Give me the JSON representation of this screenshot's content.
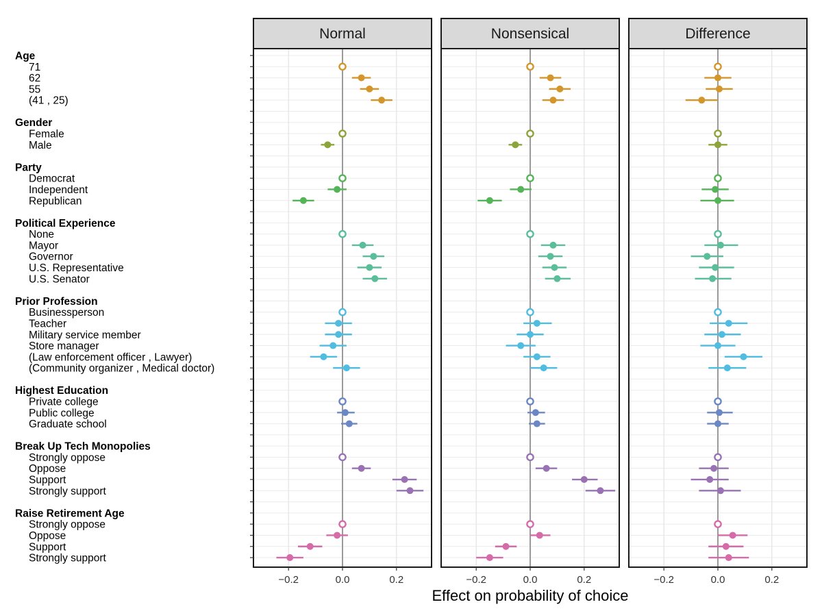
{
  "chart_data": {
    "type": "scatter",
    "subtype": "faceted coefficient plot with confidence intervals",
    "xlabel": "Effect on probability of choice",
    "xlim": [
      -0.33,
      0.33
    ],
    "xticks": [
      -0.2,
      0.0,
      0.2
    ],
    "xtick_labels": [
      "−0.2",
      "0.0",
      "0.2"
    ],
    "grid": true,
    "panels": [
      {
        "title": "Normal"
      },
      {
        "title": "Nonsensical"
      },
      {
        "title": "Difference"
      }
    ],
    "groups": [
      {
        "name": "Age",
        "color": "#D4962A",
        "levels": [
          {
            "label": "71",
            "ref": true,
            "est": [
              0,
              0,
              0
            ],
            "lo": [
              0,
              0,
              0
            ],
            "hi": [
              0,
              0,
              0
            ]
          },
          {
            "label": "62",
            "est": [
              0.07,
              0.075,
              0.0
            ],
            "lo": [
              0.035,
              0.035,
              -0.05
            ],
            "hi": [
              0.105,
              0.115,
              0.05
            ]
          },
          {
            "label": "55",
            "est": [
              0.1,
              0.11,
              0.005
            ],
            "lo": [
              0.065,
              0.07,
              -0.045
            ],
            "hi": [
              0.135,
              0.15,
              0.055
            ]
          },
          {
            "label": "(41 , 25)",
            "est": [
              0.145,
              0.085,
              -0.06
            ],
            "lo": [
              0.105,
              0.045,
              -0.12
            ],
            "hi": [
              0.185,
              0.125,
              0.0
            ]
          }
        ]
      },
      {
        "name": "Gender",
        "color": "#8DA43A",
        "levels": [
          {
            "label": "Female",
            "ref": true,
            "est": [
              0,
              0,
              0
            ],
            "lo": [
              0,
              0,
              0
            ],
            "hi": [
              0,
              0,
              0
            ]
          },
          {
            "label": "Male",
            "est": [
              -0.055,
              -0.055,
              0.0
            ],
            "lo": [
              -0.08,
              -0.08,
              -0.035
            ],
            "hi": [
              -0.03,
              -0.03,
              0.035
            ]
          }
        ]
      },
      {
        "name": "Party",
        "color": "#56B458",
        "levels": [
          {
            "label": "Democrat",
            "ref": true,
            "est": [
              0,
              0,
              0
            ],
            "lo": [
              0,
              0,
              0
            ],
            "hi": [
              0,
              0,
              0
            ]
          },
          {
            "label": "Independent",
            "est": [
              -0.02,
              -0.035,
              -0.01
            ],
            "lo": [
              -0.055,
              -0.075,
              -0.06
            ],
            "hi": [
              0.015,
              0.005,
              0.04
            ]
          },
          {
            "label": "Republican",
            "est": [
              -0.145,
              -0.15,
              0.0
            ],
            "lo": [
              -0.185,
              -0.195,
              -0.065
            ],
            "hi": [
              -0.105,
              -0.105,
              0.06
            ]
          }
        ]
      },
      {
        "name": "Political Experience",
        "color": "#5BBE9A",
        "levels": [
          {
            "label": "None",
            "ref": true,
            "est": [
              0,
              0,
              0
            ],
            "lo": [
              0,
              0,
              0
            ],
            "hi": [
              0,
              0,
              0
            ]
          },
          {
            "label": "Mayor",
            "est": [
              0.075,
              0.085,
              0.01
            ],
            "lo": [
              0.035,
              0.04,
              -0.05
            ],
            "hi": [
              0.115,
              0.13,
              0.075
            ]
          },
          {
            "label": "Governor",
            "est": [
              0.115,
              0.075,
              -0.04
            ],
            "lo": [
              0.075,
              0.03,
              -0.1
            ],
            "hi": [
              0.155,
              0.12,
              0.02
            ]
          },
          {
            "label": "U.S. Representative",
            "est": [
              0.1,
              0.09,
              -0.01
            ],
            "lo": [
              0.055,
              0.045,
              -0.07
            ],
            "hi": [
              0.145,
              0.135,
              0.06
            ]
          },
          {
            "label": "U.S. Senator",
            "est": [
              0.12,
              0.1,
              -0.02
            ],
            "lo": [
              0.075,
              0.055,
              -0.085
            ],
            "hi": [
              0.165,
              0.15,
              0.05
            ]
          }
        ]
      },
      {
        "name": "Prior Profession",
        "color": "#4FBCE0",
        "levels": [
          {
            "label": "Businessperson",
            "ref": true,
            "est": [
              0,
              0,
              0
            ],
            "lo": [
              0,
              0,
              0
            ],
            "hi": [
              0,
              0,
              0
            ]
          },
          {
            "label": "Teacher",
            "est": [
              -0.015,
              0.025,
              0.04
            ],
            "lo": [
              -0.065,
              -0.025,
              -0.03
            ],
            "hi": [
              0.035,
              0.08,
              0.11
            ]
          },
          {
            "label": "Military service member",
            "est": [
              -0.015,
              0.0,
              0.015
            ],
            "lo": [
              -0.065,
              -0.05,
              -0.05
            ],
            "hi": [
              0.035,
              0.05,
              0.085
            ]
          },
          {
            "label": "Store manager",
            "est": [
              -0.035,
              -0.035,
              0.0
            ],
            "lo": [
              -0.085,
              -0.09,
              -0.065
            ],
            "hi": [
              0.015,
              0.02,
              0.065
            ]
          },
          {
            "label": "(Law enforcement officer , Lawyer)",
            "est": [
              -0.07,
              0.025,
              0.095
            ],
            "lo": [
              -0.12,
              -0.025,
              0.025
            ],
            "hi": [
              -0.02,
              0.075,
              0.165
            ]
          },
          {
            "label": "(Community organizer , Medical doctor)",
            "est": [
              0.015,
              0.05,
              0.035
            ],
            "lo": [
              -0.035,
              0.0,
              -0.035
            ],
            "hi": [
              0.065,
              0.1,
              0.105
            ]
          }
        ]
      },
      {
        "name": "Highest Education",
        "color": "#6B88C4",
        "levels": [
          {
            "label": "Private college",
            "ref": true,
            "est": [
              0,
              0,
              0
            ],
            "lo": [
              0,
              0,
              0
            ],
            "hi": [
              0,
              0,
              0
            ]
          },
          {
            "label": "Public college",
            "est": [
              0.01,
              0.02,
              0.005
            ],
            "lo": [
              -0.02,
              -0.01,
              -0.04
            ],
            "hi": [
              0.045,
              0.055,
              0.055
            ]
          },
          {
            "label": "Graduate school",
            "est": [
              0.025,
              0.025,
              0.0
            ],
            "lo": [
              -0.005,
              -0.005,
              -0.04
            ],
            "hi": [
              0.055,
              0.055,
              0.04
            ]
          }
        ]
      },
      {
        "name": "Break Up Tech Monopolies",
        "color": "#9A72B4",
        "levels": [
          {
            "label": "Strongly oppose",
            "ref": true,
            "est": [
              0,
              0,
              0
            ],
            "lo": [
              0,
              0,
              0
            ],
            "hi": [
              0,
              0,
              0
            ]
          },
          {
            "label": "Oppose",
            "est": [
              0.07,
              0.06,
              -0.015
            ],
            "lo": [
              0.035,
              0.02,
              -0.07
            ],
            "hi": [
              0.105,
              0.1,
              0.04
            ]
          },
          {
            "label": "Support",
            "est": [
              0.23,
              0.2,
              -0.03
            ],
            "lo": [
              0.185,
              0.155,
              -0.1
            ],
            "hi": [
              0.275,
              0.25,
              0.04
            ]
          },
          {
            "label": "Strongly support",
            "est": [
              0.25,
              0.26,
              0.01
            ],
            "lo": [
              0.2,
              0.205,
              -0.07
            ],
            "hi": [
              0.3,
              0.315,
              0.085
            ]
          }
        ]
      },
      {
        "name": "Raise Retirement Age",
        "color": "#D56BA8",
        "levels": [
          {
            "label": "Strongly oppose",
            "ref": true,
            "est": [
              0,
              0,
              0
            ],
            "lo": [
              0,
              0,
              0
            ],
            "hi": [
              0,
              0,
              0
            ]
          },
          {
            "label": "Oppose",
            "est": [
              -0.02,
              0.035,
              0.055
            ],
            "lo": [
              -0.06,
              0.0,
              0.0
            ],
            "hi": [
              0.02,
              0.075,
              0.11
            ]
          },
          {
            "label": "Support",
            "est": [
              -0.12,
              -0.09,
              0.03
            ],
            "lo": [
              -0.165,
              -0.13,
              -0.035
            ],
            "hi": [
              -0.075,
              -0.05,
              0.095
            ]
          },
          {
            "label": "Strongly support",
            "est": [
              -0.195,
              -0.15,
              0.04
            ],
            "lo": [
              -0.245,
              -0.2,
              -0.035
            ],
            "hi": [
              -0.145,
              -0.1,
              0.115
            ]
          }
        ]
      }
    ]
  }
}
